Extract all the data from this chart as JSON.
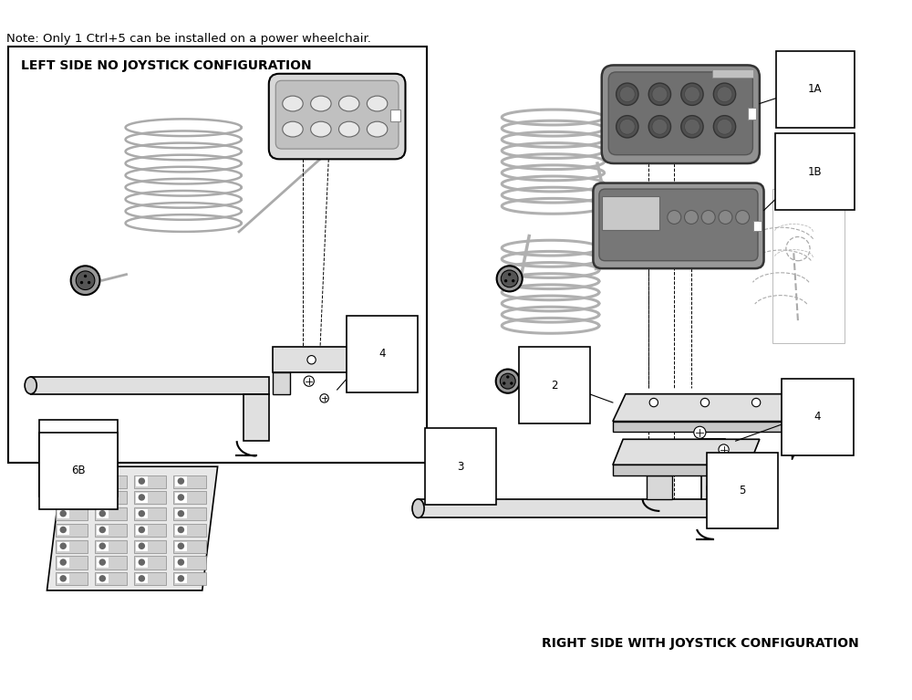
{
  "title_note": "Note: Only 1 Ctrl+5 can be installed on a power wheelchair.",
  "left_label": "LEFT SIDE NO JOYSTICK CONFIGURATION",
  "right_label": "RIGHT SIDE WITH JOYSTICK CONFIGURATION",
  "bg_color": "#ffffff",
  "lc": "#000000",
  "gray1": "#aaaaaa",
  "gray2": "#888888",
  "gray3": "#cccccc",
  "dgray": "#555555"
}
